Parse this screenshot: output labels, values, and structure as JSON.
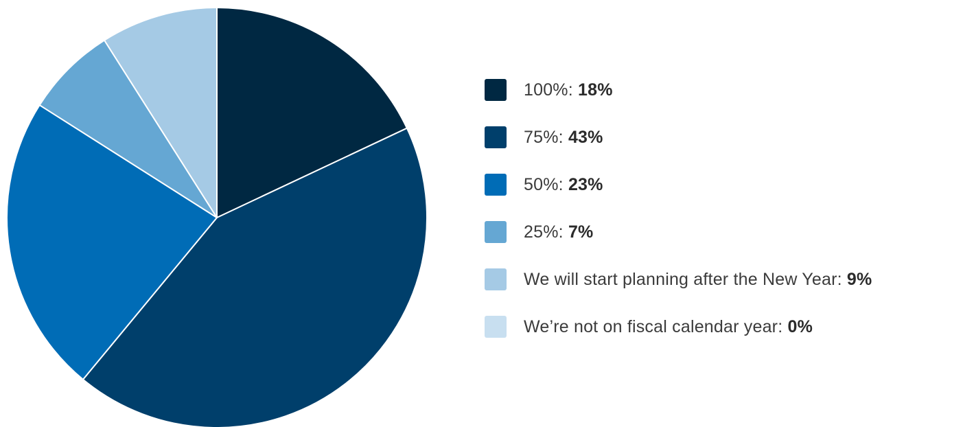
{
  "chart_data": {
    "type": "pie",
    "title": "",
    "legend_position": "right",
    "slices": [
      {
        "label": "100%",
        "value": 18,
        "value_label": "18%",
        "color": "#002842"
      },
      {
        "label": "75%",
        "value": 43,
        "value_label": "43%",
        "color": "#003f6b"
      },
      {
        "label": "50%",
        "value": 23,
        "value_label": "23%",
        "color": "#006cb6"
      },
      {
        "label": "25%",
        "value": 7,
        "value_label": "7%",
        "color": "#65a7d3"
      },
      {
        "label": "We will start planning after the New Year",
        "value": 9,
        "value_label": "9%",
        "color": "#a5cae5"
      },
      {
        "label": "We’re not on fiscal calendar year",
        "value": 0,
        "value_label": "0%",
        "color": "#c8dff0"
      }
    ]
  }
}
